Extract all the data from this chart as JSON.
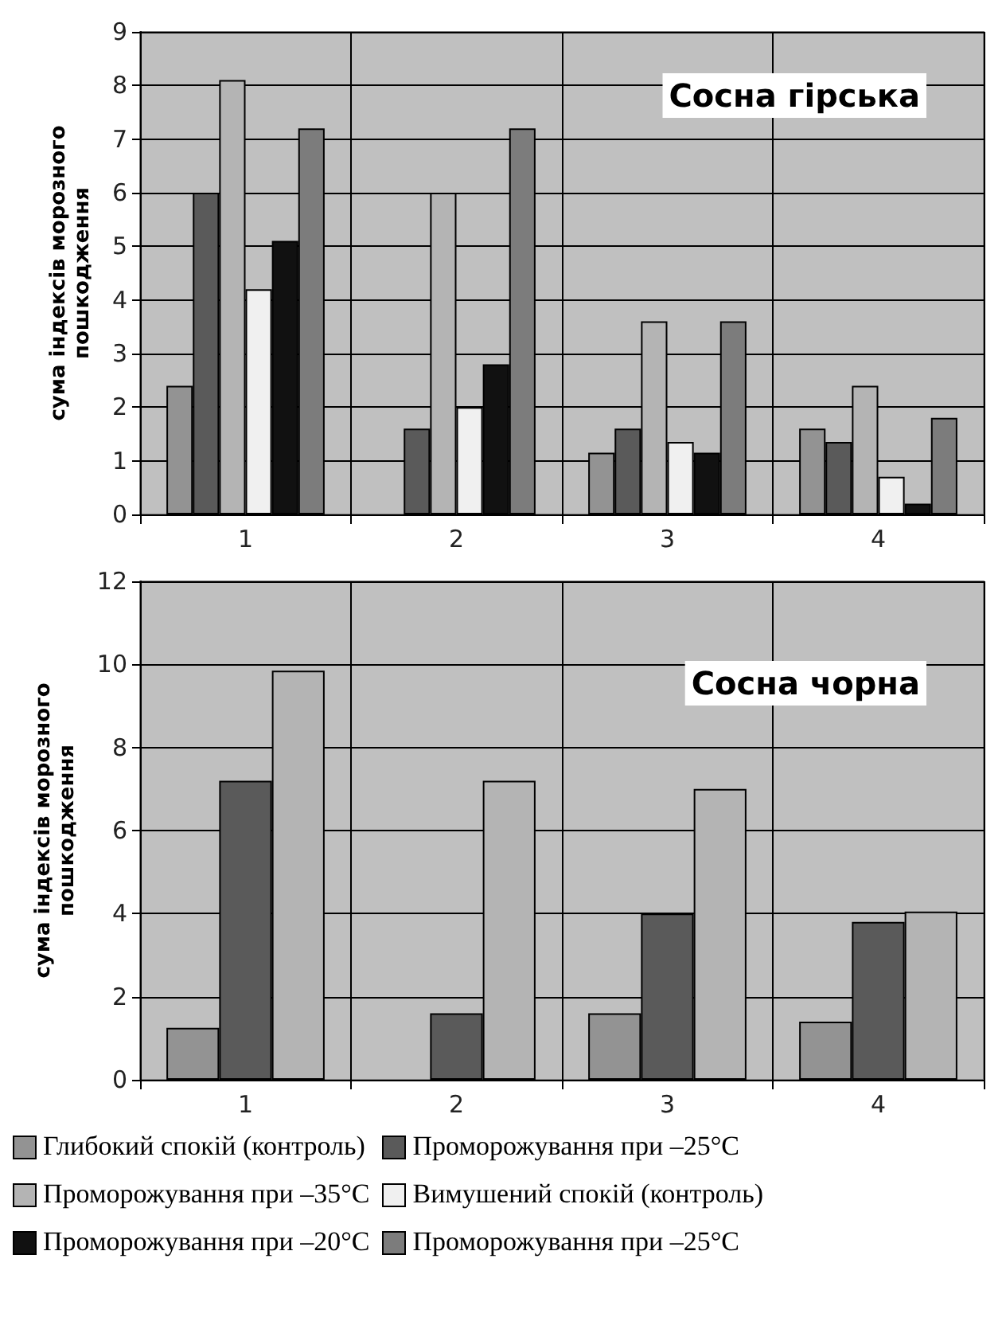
{
  "chart_data": [
    {
      "type": "bar",
      "title": "Сосна гірська",
      "ylabel": "сума індексів морозного пошкодження",
      "categories": [
        "1",
        "2",
        "3",
        "4"
      ],
      "ylim": [
        0,
        9
      ],
      "yticks": [
        0,
        1,
        2,
        3,
        4,
        5,
        6,
        7,
        8,
        9
      ],
      "grid": true,
      "legend": "bottom",
      "series": [
        {
          "name": "Глибокий спокій (контроль)",
          "color": "#939393",
          "values": [
            2.4,
            null,
            1.15,
            1.6
          ]
        },
        {
          "name": "Проморожування при –25°C",
          "color": "#5a5a5a",
          "values": [
            6.0,
            1.6,
            1.6,
            1.35
          ]
        },
        {
          "name": "Проморожування при –35°C",
          "color": "#b4b4b4",
          "values": [
            8.1,
            6.0,
            3.6,
            2.4
          ]
        },
        {
          "name": "Вимушений спокій (контроль)",
          "color": "#f0f0f0",
          "values": [
            4.2,
            2.0,
            1.35,
            0.7
          ]
        },
        {
          "name": "Проморожування при –20°C",
          "color": "#111111",
          "values": [
            5.1,
            2.8,
            1.15,
            0.2
          ]
        },
        {
          "name": "Проморожування при –25°C",
          "color": "#7c7c7c",
          "values": [
            7.2,
            7.2,
            3.6,
            1.8
          ]
        }
      ]
    },
    {
      "type": "bar",
      "title": "Сосна чорна",
      "ylabel": "сума індексів морозного пошкодження",
      "categories": [
        "1",
        "2",
        "3",
        "4"
      ],
      "ylim": [
        0,
        12
      ],
      "yticks": [
        0,
        2,
        4,
        6,
        8,
        10,
        12
      ],
      "grid": true,
      "series": [
        {
          "color": "#939393",
          "values": [
            1.25,
            null,
            1.6,
            1.4
          ]
        },
        {
          "color": "#5a5a5a",
          "values": [
            7.2,
            1.6,
            4.0,
            3.8
          ]
        },
        {
          "color": "#b4b4b4",
          "values": [
            9.85,
            7.2,
            7.0,
            4.05
          ]
        }
      ]
    }
  ]
}
